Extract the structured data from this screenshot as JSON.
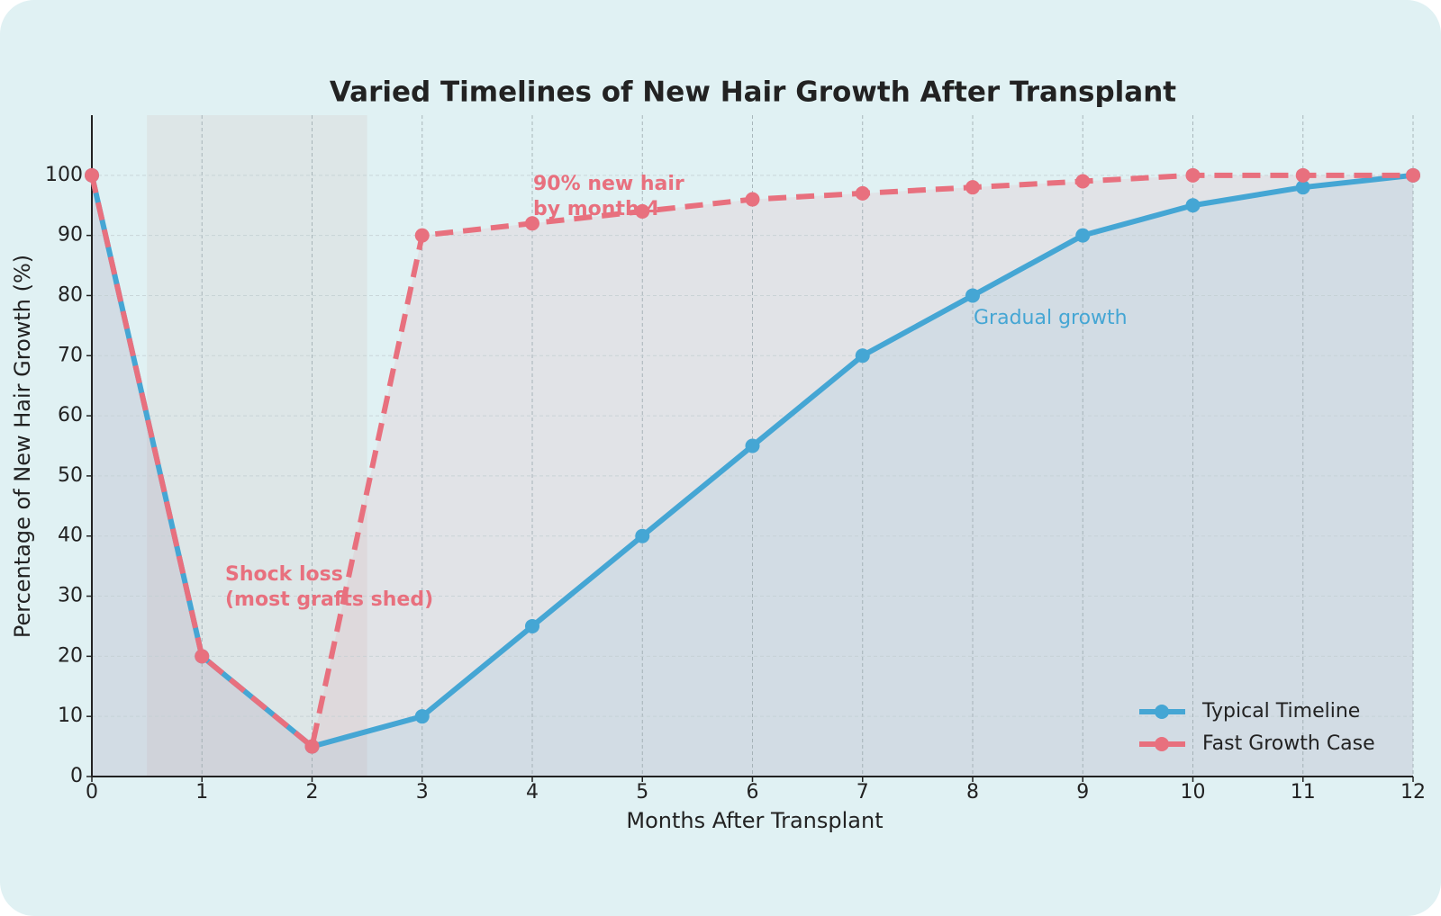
{
  "chart_data": {
    "type": "line",
    "title": "Varied Timelines of New Hair Growth After Transplant",
    "x_label": "Months After Transplant",
    "y_label": "Percentage of New Hair Growth (%)",
    "x": [
      0,
      1,
      2,
      3,
      4,
      5,
      6,
      7,
      8,
      9,
      10,
      11,
      12
    ],
    "series": [
      {
        "name": "Typical Timeline",
        "color": "#45a6d4",
        "dashed": false,
        "values": [
          100,
          20,
          5,
          10,
          25,
          40,
          55,
          70,
          80,
          90,
          95,
          98,
          100
        ]
      },
      {
        "name": "Fast Growth Case",
        "color": "#e8707e",
        "dashed": true,
        "values": [
          100,
          20,
          5,
          90,
          92,
          94,
          96,
          97,
          98,
          99,
          100,
          100,
          100
        ]
      }
    ],
    "xlim": [
      0,
      12
    ],
    "ylim": [
      0,
      110
    ],
    "xticks": [
      0,
      1,
      2,
      3,
      4,
      5,
      6,
      7,
      8,
      9,
      10,
      11,
      12
    ],
    "yticks": [
      0,
      10,
      20,
      30,
      40,
      50,
      60,
      70,
      80,
      90,
      100
    ],
    "highlight_span": [
      0.5,
      2.5
    ],
    "grid": true,
    "legend": "lower right",
    "annotations": [
      {
        "lines": [
          "Shock loss",
          "(most grafts shed)"
        ],
        "color": "#e8707e",
        "bold": true
      },
      {
        "lines": [
          "90% new hair",
          "by month 4"
        ],
        "color": "#e8707e",
        "bold": true
      },
      {
        "lines": [
          "Gradual growth"
        ],
        "color": "#45a6d4",
        "bold": false
      }
    ]
  }
}
